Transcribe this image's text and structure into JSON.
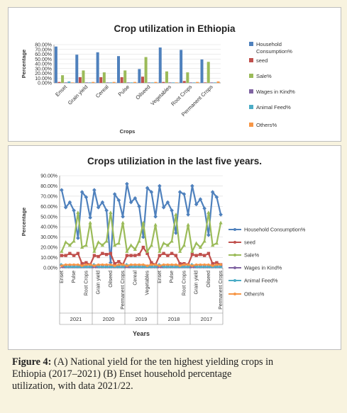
{
  "chart_data": [
    {
      "type": "bar",
      "title": "Crop utilization in Ethiopia",
      "xlabel": "Crops",
      "ylabel": "Percentage",
      "ylim": [
        0,
        80
      ],
      "yticks": [
        "80.00%",
        "70.00%",
        "60.00%",
        "50.00%",
        "40.00%",
        "30.00%",
        "20.00%",
        "10.00%",
        "0.00%"
      ],
      "categories": [
        "Enset",
        "Grain yield",
        "Cereal",
        "Pulse",
        "Oilseed",
        "Vegetables",
        "Root Crops",
        "Permanent Crops"
      ],
      "legend_position": "right",
      "series": [
        {
          "name": "Household Consumption%",
          "color": "#4f81bd",
          "values": [
            76,
            59,
            64,
            56,
            29,
            74,
            69,
            49
          ]
        },
        {
          "name": "seed",
          "color": "#c0504d",
          "values": [
            2,
            12,
            12,
            12,
            13,
            2,
            4,
            1
          ]
        },
        {
          "name": "Sale%",
          "color": "#9bbb59",
          "values": [
            16,
            26,
            22,
            26,
            54,
            24,
            22,
            44
          ]
        },
        {
          "name": "Wages in Kind%",
          "color": "#8064a2",
          "values": [
            1,
            1,
            1,
            1,
            1,
            1,
            1,
            1
          ]
        },
        {
          "name": "Animal Feed%",
          "color": "#4bacc6",
          "values": [
            3,
            1,
            1,
            1,
            1,
            1,
            1,
            1
          ]
        },
        {
          "name": "Others%",
          "color": "#f79646",
          "values": [
            1,
            2,
            2,
            2,
            2,
            1,
            2,
            3
          ]
        }
      ]
    },
    {
      "type": "line",
      "title": "Crops utiliziation in the last five years.",
      "xlabel": "Years",
      "ylabel": "Percentage",
      "ylim": [
        0,
        90
      ],
      "yticks": [
        "90.00%",
        "80.00%",
        "70.00%",
        "60.00%",
        "50.00%",
        "40.00%",
        "30.00%",
        "20.00%",
        "10.00%",
        "0.00%"
      ],
      "x_tick_labels": [
        "Enset",
        "Pulse",
        "Root Crops",
        "Grain yield",
        "Oilseed",
        "Permanent Crops",
        "Cereal",
        "Vegetables",
        "Enset",
        "Pulse",
        "Root Crops",
        "Grain yield",
        "Oilseed",
        "Permanent Crops"
      ],
      "groups": [
        "2021",
        "2020",
        "2019",
        "2018",
        "2017"
      ],
      "legend_position": "right",
      "series": [
        {
          "name": "Household Consumption%",
          "color": "#4f81bd",
          "marker": "diamond",
          "values": [
            76,
            59,
            64,
            56,
            29,
            74,
            69,
            49,
            76,
            59,
            64,
            56,
            5,
            72,
            66,
            50,
            82,
            64,
            68,
            60,
            30,
            78,
            74,
            50,
            80,
            59,
            64,
            56,
            34,
            74,
            72,
            52,
            80,
            62,
            67,
            58,
            32,
            74,
            69,
            52
          ]
        },
        {
          "name": "seed",
          "color": "#c0504d",
          "marker": "square",
          "values": [
            12,
            12,
            14,
            12,
            14,
            4,
            5,
            3,
            12,
            11,
            14,
            13,
            14,
            4,
            6,
            3,
            12,
            12,
            12,
            13,
            20,
            14,
            5,
            3,
            12,
            14,
            12,
            14,
            12,
            4,
            4,
            3,
            13,
            12,
            13,
            12,
            14,
            4,
            5,
            3
          ]
        },
        {
          "name": "Sale%",
          "color": "#9bbb59",
          "marker": "triangle",
          "values": [
            16,
            25,
            22,
            26,
            54,
            20,
            22,
            44,
            16,
            25,
            22,
            26,
            54,
            22,
            24,
            44,
            16,
            22,
            18,
            26,
            44,
            16,
            22,
            42,
            16,
            24,
            22,
            26,
            52,
            16,
            22,
            42,
            16,
            24,
            20,
            26,
            54,
            22,
            24,
            44
          ]
        },
        {
          "name": "Wages in Kind%",
          "color": "#8064a2",
          "marker": "x",
          "values": [
            1,
            1,
            1,
            1,
            1,
            1,
            1,
            1,
            1,
            1,
            1,
            1,
            1,
            1,
            1,
            1,
            1,
            1,
            1,
            1,
            1,
            1,
            1,
            1,
            1,
            1,
            1,
            1,
            1,
            1,
            1,
            1,
            1,
            1,
            1,
            1,
            1,
            1,
            1,
            1
          ]
        },
        {
          "name": "Animal Feed%",
          "color": "#4bacc6",
          "marker": "star",
          "values": [
            3,
            1,
            1,
            1,
            1,
            1,
            1,
            1,
            3,
            1,
            1,
            1,
            1,
            1,
            1,
            1,
            3,
            1,
            1,
            1,
            1,
            1,
            1,
            1,
            3,
            1,
            1,
            1,
            1,
            1,
            1,
            1,
            3,
            1,
            1,
            1,
            1,
            1,
            1,
            1
          ]
        },
        {
          "name": "Others%",
          "color": "#f79646",
          "marker": "circle",
          "values": [
            2,
            3,
            3,
            3,
            3,
            2,
            3,
            3,
            2,
            3,
            3,
            3,
            3,
            2,
            3,
            3,
            2,
            3,
            3,
            3,
            3,
            2,
            3,
            3,
            2,
            3,
            3,
            3,
            3,
            2,
            3,
            3,
            2,
            3,
            3,
            3,
            3,
            2,
            3,
            3
          ]
        }
      ]
    }
  ],
  "caption": {
    "label": "Figure 4:",
    "line1": " (A) National yield for the ten highest yielding crops in",
    "line2": "Ethiopia (2017–2021) (B) Enset household percentage",
    "line3": "utilization, with data 2021/22."
  }
}
